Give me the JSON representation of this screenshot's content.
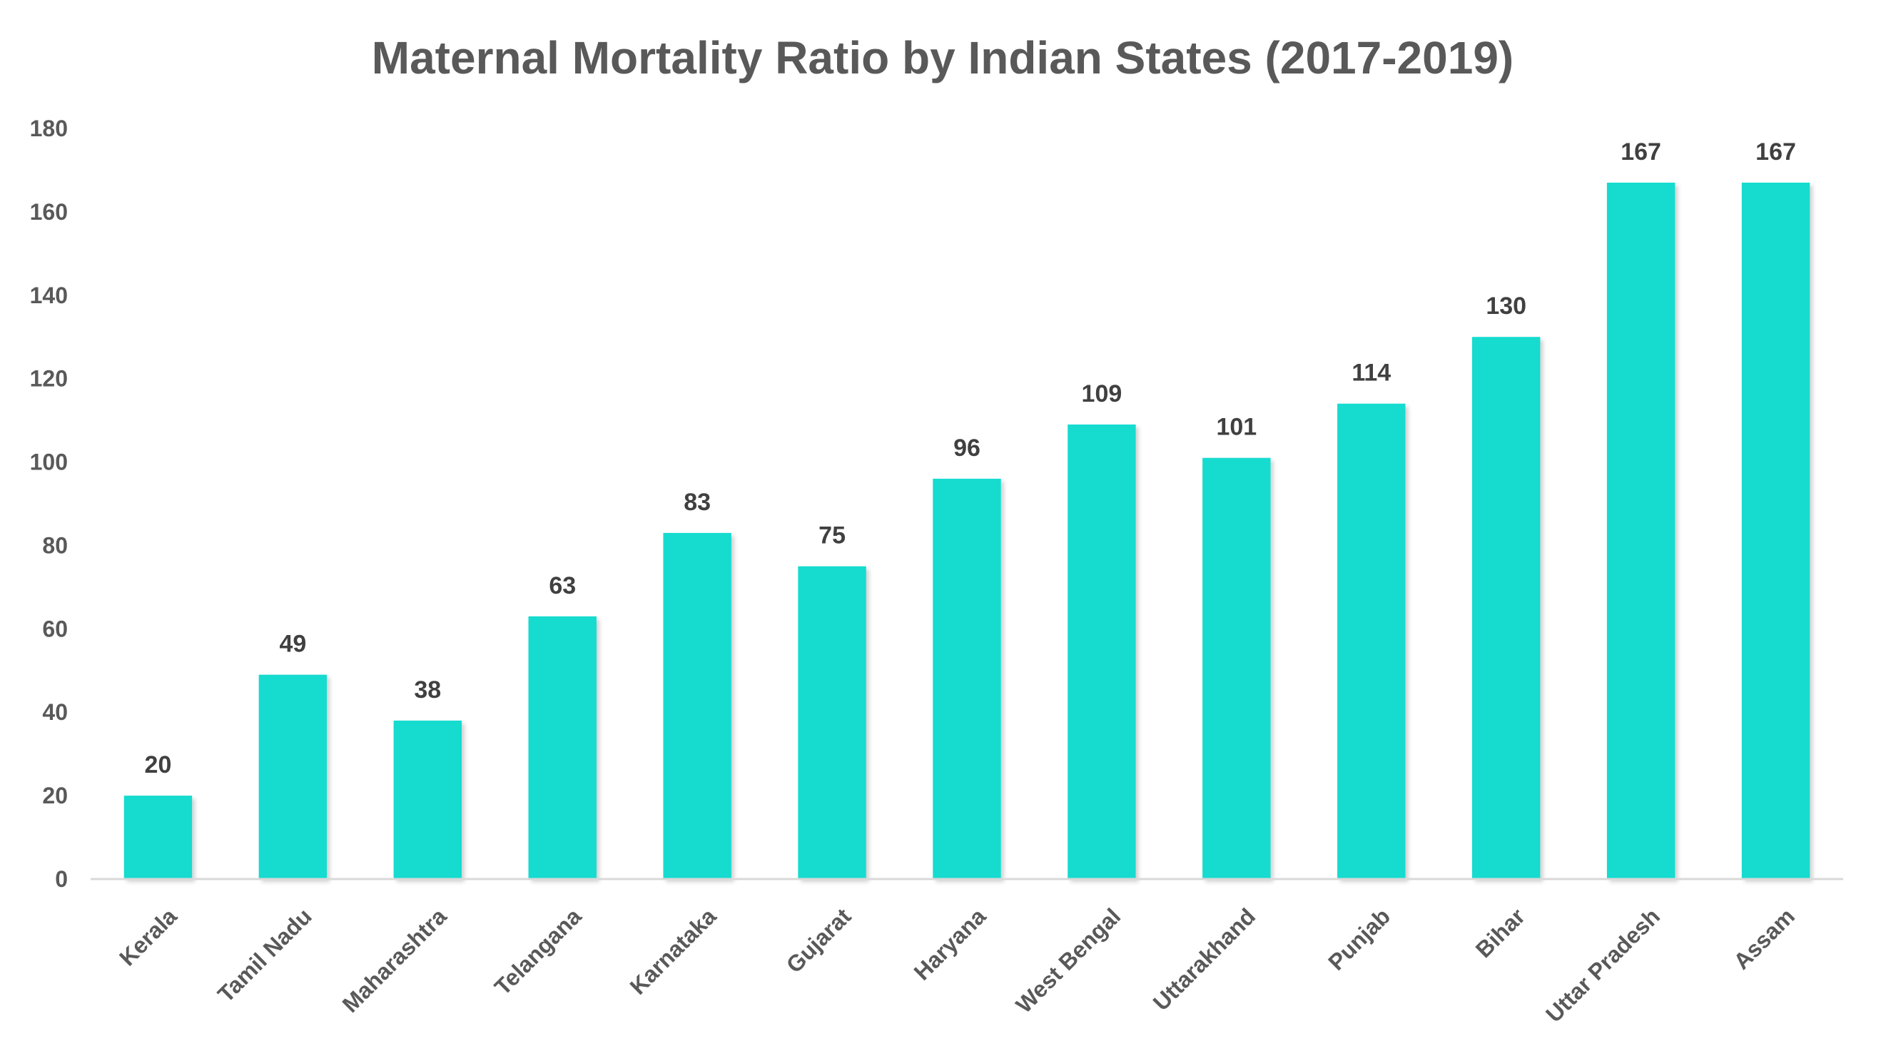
{
  "chart_data": {
    "type": "bar",
    "title": "Maternal Mortality Ratio by Indian States (2017-2019)",
    "xlabel": "",
    "ylabel": "",
    "ylim": [
      0,
      180
    ],
    "yticks": [
      0,
      20,
      40,
      60,
      80,
      100,
      120,
      140,
      160,
      180
    ],
    "ytick_labels": [
      "0",
      "20",
      "40",
      "60",
      "80",
      "100",
      "120",
      "140",
      "160",
      "180"
    ],
    "grid": false,
    "legend": "none",
    "categories": [
      "Kerala",
      "Tamil Nadu",
      "Maharashtra",
      "Telangana",
      "Karnataka",
      "Gujarat",
      "Haryana",
      "West Bengal",
      "Uttarakhand",
      "Punjab",
      "Bihar",
      "Uttar Pradesh",
      "Assam"
    ],
    "values": [
      20,
      49,
      38,
      63,
      83,
      75,
      96,
      109,
      101,
      114,
      130,
      167,
      167
    ],
    "data_labels": [
      "20",
      "49",
      "38",
      "63",
      "83",
      "75",
      "96",
      "109",
      "101",
      "114",
      "130",
      "167",
      "167"
    ],
    "bar_color": "#17DBCF",
    "axis_color": "#D9D9D9"
  }
}
